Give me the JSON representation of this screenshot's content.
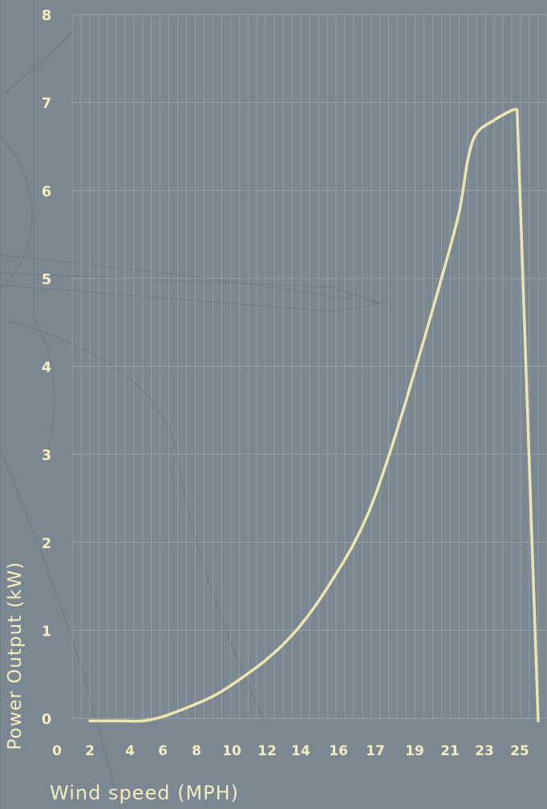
{
  "chart_data": {
    "type": "line",
    "title": "",
    "xlabel": "Wind speed (MPH)",
    "ylabel": "Power Output (kW)",
    "xlim": [
      0,
      27
    ],
    "ylim": [
      0,
      8
    ],
    "grid": true,
    "x_tick_labels": [
      "0",
      "2",
      "4",
      "6",
      "8",
      "10",
      "12",
      "14",
      "16",
      "17",
      "19",
      "21",
      "23",
      "25"
    ],
    "y_tick_labels": [
      "0",
      "1",
      "2",
      "3",
      "4",
      "5",
      "6",
      "7",
      "8"
    ],
    "series": [
      {
        "x": [
          1,
          2,
          3,
          4,
          5,
          6,
          7,
          8,
          9,
          10,
          11,
          12,
          13,
          14,
          15,
          16,
          17,
          18,
          19,
          20,
          21,
          22,
          22.5,
          23,
          24,
          25,
          25.3,
          26.5
        ],
        "y": [
          -0.03,
          -0.03,
          -0.03,
          -0.03,
          0.01,
          0.08,
          0.16,
          0.25,
          0.37,
          0.51,
          0.66,
          0.84,
          1.06,
          1.33,
          1.64,
          1.98,
          2.41,
          2.98,
          3.62,
          4.3,
          5.0,
          5.75,
          6.35,
          6.65,
          6.8,
          6.91,
          6.92,
          -0.03
        ]
      }
    ],
    "colors": {
      "background": "#7b8891",
      "curve": "#ede4b0",
      "grid": "#9aa6ae",
      "text": "#f2ecc0"
    }
  }
}
